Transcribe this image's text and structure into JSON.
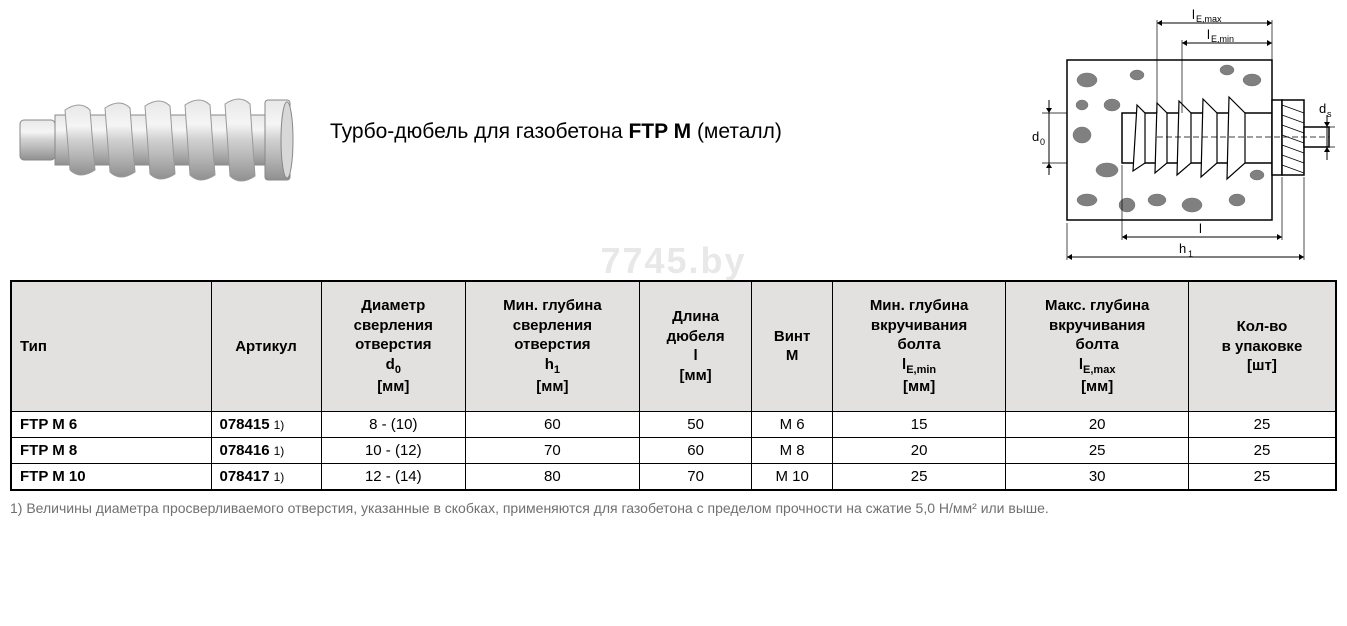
{
  "product": {
    "title_prefix": "Турбо-дюбель для газобетона ",
    "title_model": "FTP M",
    "title_suffix": " (металл)"
  },
  "watermark": "7745.by",
  "drawing_labels": {
    "le_max": "lE,max",
    "le_min": "lE,min",
    "d0": "d0",
    "ds": "ds",
    "l": "l",
    "h1": "h1"
  },
  "table": {
    "headers": {
      "type": "Тип",
      "article": "Артикул",
      "drill_dia": "Диаметр\nсверления\nотверстия\nd0\n[мм]",
      "drill_depth": "Мин. глубина\nсверления\nотверстия\nh1\n[мм]",
      "dowel_len": "Длина\nдюбеля\nl\n[мм]",
      "screw": "Винт\nM",
      "screw_min": "Мин. глубина\nвкручивания\nболта\nlE,min\n[мм]",
      "screw_max": "Макс. глубина\nвкручивания\nболта\nlE,max\n[мм]",
      "qty": "Кол-во\nв упаковке\n[шт]"
    },
    "rows": [
      {
        "type": "FTP M 6",
        "article": "078415",
        "note": "1)",
        "drill_dia": "8 - (10)",
        "drill_depth": "60",
        "dowel_len": "50",
        "screw": "M 6",
        "screw_min": "15",
        "screw_max": "20",
        "qty": "25"
      },
      {
        "type": "FTP M 8",
        "article": "078416",
        "note": "1)",
        "drill_dia": "10 - (12)",
        "drill_depth": "70",
        "dowel_len": "60",
        "screw": "M 8",
        "screw_min": "20",
        "screw_max": "25",
        "qty": "25"
      },
      {
        "type": "FTP M 10",
        "article": "078417",
        "note": "1)",
        "drill_dia": "12 - (14)",
        "drill_depth": "80",
        "dowel_len": "70",
        "screw": "M 10",
        "screw_min": "25",
        "screw_max": "30",
        "qty": "25"
      }
    ]
  },
  "footnote": "1) Величины диаметра просверливаемого отверстия, указанные в скобках, применяются для газобетона с пределом прочности на сжатие 5,0 Н/мм² или выше.",
  "colors": {
    "header_bg": "#e3e1e0",
    "border": "#000000",
    "footnote": "#707070",
    "watermark": "#e8e8e8"
  }
}
